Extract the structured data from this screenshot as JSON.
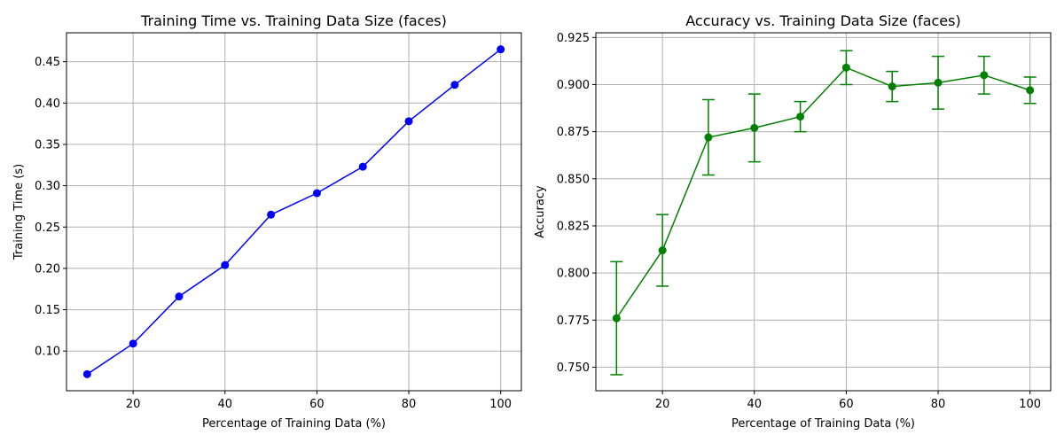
{
  "chart_data": [
    {
      "type": "line",
      "title": "Training Time vs. Training Data Size (faces)",
      "xlabel": "Percentage of Training Data (%)",
      "ylabel": "Training Time (s)",
      "xlim": [
        5.5,
        104.5
      ],
      "ylim": [
        0.052,
        0.485
      ],
      "xticks": [
        20,
        40,
        60,
        80,
        100
      ],
      "yticks": [
        0.1,
        0.15,
        0.2,
        0.25,
        0.3,
        0.35,
        0.4,
        0.45
      ],
      "ytick_labels": [
        "0.10",
        "0.15",
        "0.20",
        "0.25",
        "0.30",
        "0.35",
        "0.40",
        "0.45"
      ],
      "grid": true,
      "color": "#0000ff",
      "series": [
        {
          "x": [
            10,
            20,
            30,
            40,
            50,
            60,
            70,
            80,
            90,
            100
          ],
          "y": [
            0.072,
            0.109,
            0.166,
            0.204,
            0.265,
            0.291,
            0.323,
            0.378,
            0.422,
            0.465
          ]
        }
      ]
    },
    {
      "type": "line",
      "title": "Accuracy vs. Training Data Size (faces)",
      "xlabel": "Percentage of Training Data (%)",
      "ylabel": "Accuracy",
      "xlim": [
        5.5,
        104.5
      ],
      "ylim": [
        0.7375,
        0.9275
      ],
      "xticks": [
        20,
        40,
        60,
        80,
        100
      ],
      "yticks": [
        0.75,
        0.775,
        0.8,
        0.825,
        0.85,
        0.875,
        0.9,
        0.925
      ],
      "ytick_labels": [
        "0.750",
        "0.775",
        "0.800",
        "0.825",
        "0.850",
        "0.875",
        "0.900",
        "0.925"
      ],
      "grid": true,
      "color": "#008000",
      "series": [
        {
          "x": [
            10,
            20,
            30,
            40,
            50,
            60,
            70,
            80,
            90,
            100
          ],
          "y": [
            0.776,
            0.812,
            0.872,
            0.877,
            0.883,
            0.909,
            0.899,
            0.901,
            0.905,
            0.897
          ],
          "err": [
            0.03,
            0.019,
            0.02,
            0.018,
            0.008,
            0.009,
            0.008,
            0.014,
            0.01,
            0.007
          ]
        }
      ]
    }
  ]
}
